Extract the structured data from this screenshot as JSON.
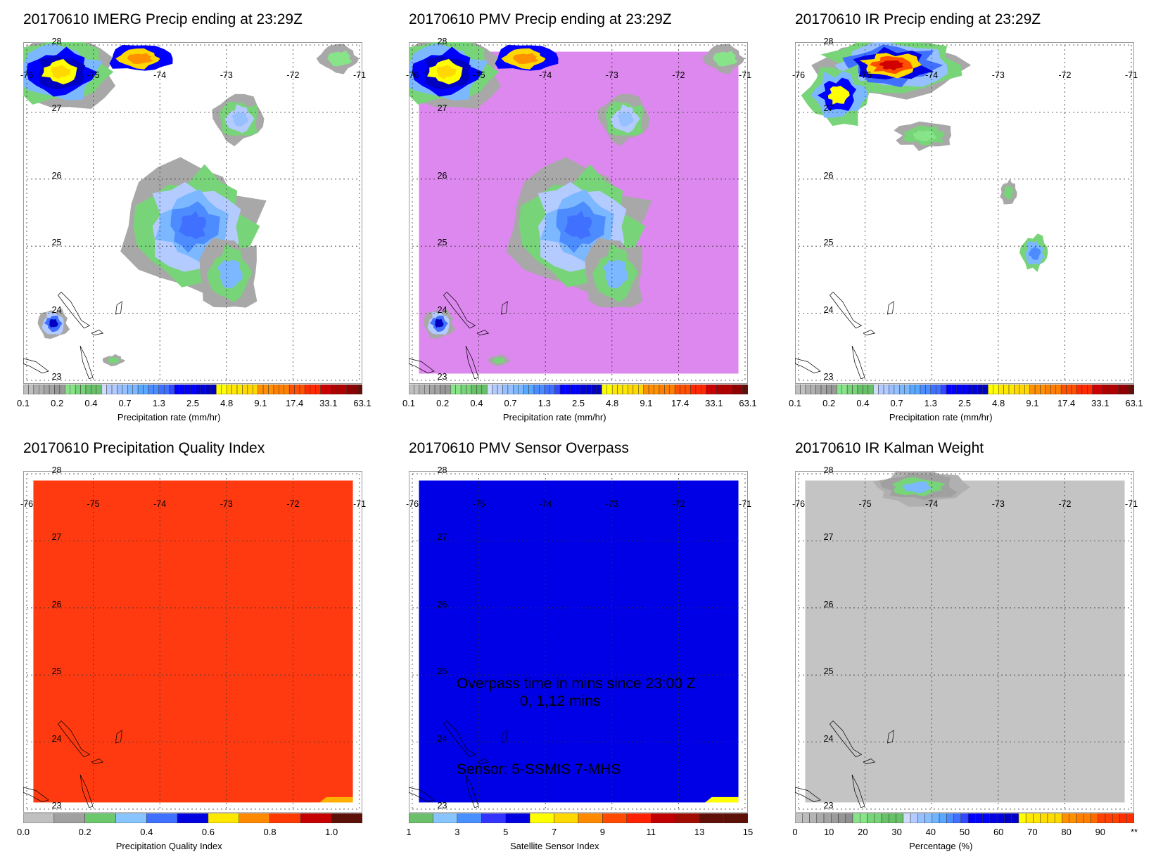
{
  "panels": [
    {
      "id": "imerg",
      "title": "20170610 IMERG Precip ending at 23:29Z",
      "background": "#ffffff",
      "field": "precip-imerg",
      "colorbar": "precip"
    },
    {
      "id": "pmv",
      "title": "20170610 PMV Precip ending at 23:29Z",
      "background": "#dd88ee",
      "field": "precip-pmv",
      "colorbar": "precip"
    },
    {
      "id": "ir",
      "title": "20170610 IR Precip ending at 23:29Z",
      "background": "#ffffff",
      "field": "precip-ir",
      "colorbar": "precip"
    },
    {
      "id": "pqi",
      "title": "20170610 Precipitation Quality Index",
      "background": "#ff3a10",
      "field": "quality",
      "colorbar": "quality"
    },
    {
      "id": "sensor",
      "title": "20170610 PMV Sensor Overpass",
      "background": "#0000e6",
      "field": "sensor",
      "colorbar": "sensor"
    },
    {
      "id": "kalman",
      "title": "20170610 IR Kalman Weight",
      "background": "#c4c4c4",
      "field": "kalman",
      "colorbar": "percent"
    }
  ],
  "map": {
    "lon_labels": [
      "-76",
      "-75",
      "-74",
      "-73",
      "-72",
      "-71"
    ],
    "lat_labels": [
      "28",
      "27",
      "26",
      "25",
      "24",
      "23"
    ],
    "lon_range": [
      -76,
      -71
    ],
    "lat_range": [
      23,
      28
    ]
  },
  "sensor_annotation": {
    "line1": "Overpass time in mins since 23:00 Z",
    "line2": "0, 1,12 mins",
    "line3": "Sensor:   5-SSMIS  7-MHS"
  },
  "colorbars": {
    "precip": {
      "title": "Precipitation rate (mm/hr)",
      "ticks": [
        "0.1",
        "0.2",
        "0.4",
        "0.7",
        "1.3",
        "2.5",
        "4.8",
        "9.1",
        "17.4",
        "33.1",
        "63.1"
      ],
      "segments": [
        [
          "#c0c0c0",
          2
        ],
        [
          "#b0b0b0",
          2
        ],
        [
          "#a4a4a4",
          2
        ],
        [
          "#989898",
          2
        ],
        [
          "#88e488",
          2
        ],
        [
          "#78d478",
          2
        ],
        [
          "#68c068",
          3
        ],
        [
          "#d0dcff",
          1
        ],
        [
          "#b4cbff",
          2
        ],
        [
          "#96c0ff",
          2
        ],
        [
          "#7cb8ff",
          2
        ],
        [
          "#58a8ff",
          2
        ],
        [
          "#4c8cff",
          2
        ],
        [
          "#4070ff",
          2
        ],
        [
          "#3448ff",
          1
        ],
        [
          "#0000ff",
          4
        ],
        [
          "#0000dc",
          2
        ],
        [
          "#0000c0",
          2
        ],
        [
          "#ffff00",
          2
        ],
        [
          "#ffe800",
          3
        ],
        [
          "#ffd800",
          3
        ],
        [
          "#ff9000",
          3
        ],
        [
          "#ff8000",
          3
        ],
        [
          "#ff5000",
          3
        ],
        [
          "#ff2a00",
          3
        ],
        [
          "#d00000",
          2
        ],
        [
          "#b00000",
          3
        ],
        [
          "#900000",
          2
        ],
        [
          "#601008",
          1
        ]
      ]
    },
    "quality": {
      "title": "Precipitation Quality Index",
      "ticks": [
        "0.0",
        "0.2",
        "0.4",
        "0.6",
        "0.8",
        "1.0"
      ],
      "range": [
        0,
        1.1
      ],
      "segments": [
        [
          "#c0c0c0",
          1
        ],
        [
          "#a0a0a0",
          1
        ],
        [
          "#6cc86c",
          1
        ],
        [
          "#88c4ff",
          1
        ],
        [
          "#4070ff",
          1
        ],
        [
          "#0000e0",
          1
        ],
        [
          "#ffe800",
          1
        ],
        [
          "#ff8a00",
          1
        ],
        [
          "#ff3a00",
          1
        ],
        [
          "#c40000",
          1
        ],
        [
          "#5c1008",
          1
        ]
      ]
    },
    "sensor": {
      "title": "Satellite Sensor Index",
      "ticks": [
        "1",
        "3",
        "5",
        "7",
        "9",
        "11",
        "13",
        "15"
      ],
      "range": [
        1,
        15
      ],
      "segments": [
        [
          "#6cc06c",
          1
        ],
        [
          "#88c4ff",
          1
        ],
        [
          "#4890ff",
          1
        ],
        [
          "#3434ff",
          1
        ],
        [
          "#0000e0",
          1
        ],
        [
          "#ffff00",
          1
        ],
        [
          "#ffd800",
          1
        ],
        [
          "#ff8a00",
          1
        ],
        [
          "#ff4a00",
          1
        ],
        [
          "#ff2200",
          1
        ],
        [
          "#c00000",
          1
        ],
        [
          "#a00c00",
          1
        ],
        [
          "#601008",
          1
        ],
        [
          "#5c1008",
          1
        ]
      ]
    },
    "percent": {
      "title": "Percentage (%)",
      "ticks": [
        "0",
        "10",
        "20",
        "30",
        "40",
        "50",
        "60",
        "70",
        "80",
        "90",
        "**"
      ],
      "range": [
        0,
        100
      ],
      "segments": [
        [
          "#c4c4c4",
          1
        ],
        [
          "#bcbcbc",
          1
        ],
        [
          "#b4b4b4",
          1
        ],
        [
          "#ababab",
          1
        ],
        [
          "#a4a4a4",
          1
        ],
        [
          "#9c9c9c",
          1
        ],
        [
          "#969696",
          1
        ],
        [
          "#909090",
          1
        ],
        [
          "#88e488",
          2
        ],
        [
          "#78d478",
          2
        ],
        [
          "#68c068",
          3
        ],
        [
          "#d0dcff",
          1
        ],
        [
          "#b4cbff",
          1
        ],
        [
          "#96c0ff",
          1
        ],
        [
          "#88c0ff",
          1
        ],
        [
          "#70b4ff",
          1
        ],
        [
          "#58a8ff",
          1
        ],
        [
          "#4c8cff",
          1
        ],
        [
          "#4070ff",
          1
        ],
        [
          "#3448ff",
          1
        ],
        [
          "#0000ff",
          3
        ],
        [
          "#0000e0",
          2
        ],
        [
          "#0000c8",
          2
        ],
        [
          "#ffff00",
          1
        ],
        [
          "#ffe800",
          2
        ],
        [
          "#ffdc00",
          3
        ],
        [
          "#ff9000",
          2
        ],
        [
          "#ff8000",
          2
        ],
        [
          "#ff6a00",
          1
        ],
        [
          "#ff4000",
          3
        ],
        [
          "#ff3000",
          2
        ]
      ]
    }
  }
}
